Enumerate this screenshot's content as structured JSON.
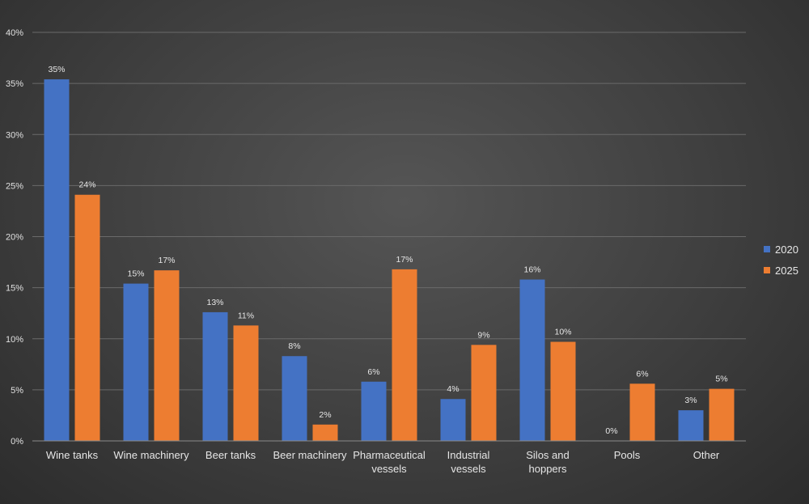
{
  "chart_data": {
    "type": "bar",
    "categories": [
      [
        "Wine tanks"
      ],
      [
        "Wine machinery"
      ],
      [
        "Beer tanks"
      ],
      [
        "Beer machinery"
      ],
      [
        "Pharmaceutical",
        "vessels"
      ],
      [
        "Industrial",
        "vessels"
      ],
      [
        "Silos and",
        "hoppers"
      ],
      [
        "Pools"
      ],
      [
        "Other"
      ]
    ],
    "series": [
      {
        "name": "2020",
        "color": "#4472c4",
        "values": [
          35.4,
          15.4,
          12.6,
          8.3,
          5.8,
          4.1,
          15.8,
          0,
          3.0
        ],
        "labels": [
          "35%",
          "15%",
          "13%",
          "8%",
          "6%",
          "4%",
          "16%",
          "0%",
          "3%"
        ]
      },
      {
        "name": "2025",
        "color": "#ed7d31",
        "values": [
          24.1,
          16.7,
          11.3,
          1.6,
          16.8,
          9.4,
          9.7,
          5.6,
          5.1
        ],
        "labels": [
          "24%",
          "17%",
          "11%",
          "2%",
          "17%",
          "9%",
          "10%",
          "6%",
          "5%"
        ]
      }
    ],
    "ylim": [
      0,
      40
    ],
    "yticks": [
      0,
      5,
      10,
      15,
      20,
      25,
      30,
      35,
      40
    ],
    "ytick_labels": [
      "0%",
      "5%",
      "10%",
      "15%",
      "20%",
      "25%",
      "30%",
      "35%",
      "40%"
    ],
    "grid": true,
    "legend": "right",
    "title": "",
    "xlabel": "",
    "ylabel": ""
  }
}
